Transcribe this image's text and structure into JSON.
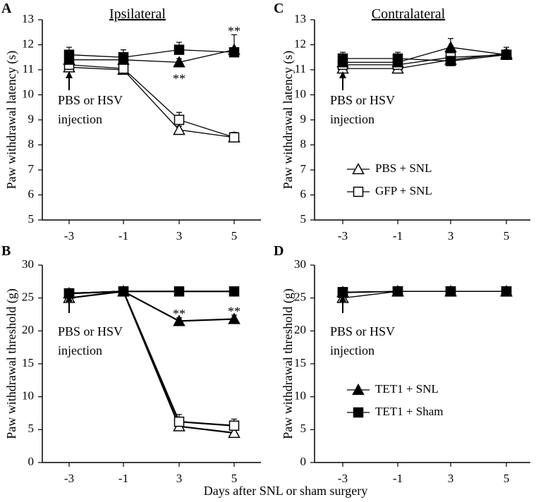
{
  "figure": {
    "xlabel": "Days after SNL or sham surgery"
  },
  "legend": {
    "symbol_colors": {
      "open": "#ffffff",
      "filled": "#000000",
      "line": "#000000"
    }
  },
  "chart_data": [
    {
      "panel": "A",
      "type": "line",
      "title": "Ipsilateral",
      "ylabel": "Paw withdrawal latency (s)",
      "xlabel": "Days after SNL or sham surgery",
      "categories": [
        "-3",
        "-1",
        "3",
        "5"
      ],
      "ylim": [
        5,
        13
      ],
      "yticks": [
        5,
        6,
        7,
        8,
        9,
        10,
        11,
        12,
        13
      ],
      "annotation": [
        "PBS or HSV",
        "injection"
      ],
      "series": [
        {
          "name": "PBS + SNL",
          "marker": "open-triangle",
          "values": [
            11.1,
            11.0,
            8.6,
            8.3
          ],
          "errors": [
            0.1,
            0.1,
            0.15,
            0.15
          ]
        },
        {
          "name": "GFP + SNL",
          "marker": "open-square",
          "values": [
            11.2,
            11.05,
            9.0,
            8.3
          ],
          "errors": [
            0.1,
            0.1,
            0.3,
            0.2
          ]
        },
        {
          "name": "TET1 + SNL",
          "marker": "filled-triangle",
          "values": [
            11.4,
            11.4,
            11.3,
            11.8
          ],
          "errors": [
            0.15,
            0.15,
            0.15,
            0.6
          ]
        },
        {
          "name": "TET1 + Sham",
          "marker": "filled-square",
          "values": [
            11.6,
            11.5,
            11.8,
            11.7
          ],
          "errors": [
            0.3,
            0.3,
            0.3,
            0.15
          ]
        }
      ],
      "significance": [
        {
          "category": "3",
          "text": "**",
          "value": 10.7
        },
        {
          "category": "5",
          "text": "**",
          "value": 12.6
        }
      ]
    },
    {
      "panel": "C",
      "type": "line",
      "title": "Contralateral",
      "ylabel": "Paw withdrawal latency (s)",
      "xlabel": "Days after SNL or sham surgery",
      "categories": [
        "-3",
        "-1",
        "3",
        "5"
      ],
      "ylim": [
        5,
        13
      ],
      "yticks": [
        5,
        6,
        7,
        8,
        9,
        10,
        11,
        12,
        13
      ],
      "annotation": [
        "PBS or HSV",
        "injection"
      ],
      "series": [
        {
          "name": "PBS + SNL",
          "marker": "open-triangle",
          "values": [
            11.05,
            11.05,
            11.4,
            11.65
          ],
          "errors": [
            0.1,
            0.1,
            0.1,
            0.15
          ]
        },
        {
          "name": "GFP + SNL",
          "marker": "open-square",
          "values": [
            11.2,
            11.2,
            11.5,
            11.6
          ],
          "errors": [
            0.15,
            0.15,
            0.2,
            0.2
          ]
        },
        {
          "name": "TET1 + SNL",
          "marker": "filled-triangle",
          "values": [
            11.3,
            11.3,
            11.9,
            11.6
          ],
          "errors": [
            0.15,
            0.15,
            0.35,
            0.15
          ]
        },
        {
          "name": "TET1 + Sham",
          "marker": "filled-square",
          "values": [
            11.45,
            11.45,
            11.35,
            11.6
          ],
          "errors": [
            0.25,
            0.25,
            0.1,
            0.3
          ]
        }
      ],
      "legend_entries": [
        "PBS + SNL",
        "GFP + SNL"
      ]
    },
    {
      "panel": "B",
      "type": "line",
      "title": "",
      "ylabel": "Paw withdrawal threshold (g)",
      "xlabel": "Days after SNL or sham surgery",
      "categories": [
        "-3",
        "-1",
        "3",
        "5"
      ],
      "ylim": [
        0,
        30
      ],
      "yticks": [
        0,
        5,
        10,
        15,
        20,
        25,
        30
      ],
      "annotation": [
        "PBS or HSV",
        "injection"
      ],
      "series": [
        {
          "name": "PBS + SNL",
          "marker": "open-triangle",
          "values": [
            25.0,
            26.0,
            5.5,
            4.5
          ],
          "errors": [
            0.3,
            0.3,
            0.5,
            0.8
          ]
        },
        {
          "name": "GFP + SNL",
          "marker": "open-square",
          "values": [
            25.7,
            26.0,
            6.2,
            5.6
          ],
          "errors": [
            0.3,
            0.3,
            1.1,
            1.0
          ]
        },
        {
          "name": "TET1 + SNL",
          "marker": "filled-triangle",
          "values": [
            25.7,
            26.0,
            21.5,
            21.8
          ],
          "errors": [
            0.3,
            0.3,
            0.5,
            0.6
          ]
        },
        {
          "name": "TET1 + Sham",
          "marker": "filled-square",
          "values": [
            25.7,
            26.0,
            26.0,
            26.0
          ],
          "errors": [
            0.3,
            0.3,
            0.3,
            0.3
          ]
        }
      ],
      "significance": [
        {
          "category": "3",
          "text": "**",
          "value": 22.8
        },
        {
          "category": "5",
          "text": "**",
          "value": 23.2
        }
      ]
    },
    {
      "panel": "D",
      "type": "line",
      "title": "",
      "ylabel": "Paw withdrawal threshold (g)",
      "xlabel": "Days after SNL or sham surgery",
      "categories": [
        "-3",
        "-1",
        "3",
        "5"
      ],
      "ylim": [
        0,
        30
      ],
      "yticks": [
        0,
        5,
        10,
        15,
        20,
        25,
        30
      ],
      "annotation": [
        "PBS or HSV",
        "injection"
      ],
      "series": [
        {
          "name": "PBS + SNL",
          "marker": "open-triangle",
          "values": [
            25.0,
            26.0,
            26.0,
            26.0
          ],
          "errors": [
            0.3,
            0.3,
            0.3,
            0.3
          ]
        },
        {
          "name": "GFP + SNL",
          "marker": "open-square",
          "values": [
            25.8,
            26.0,
            26.0,
            26.0
          ],
          "errors": [
            0.3,
            0.3,
            0.3,
            0.3
          ]
        },
        {
          "name": "TET1 + SNL",
          "marker": "filled-triangle",
          "values": [
            25.9,
            26.0,
            26.0,
            26.0
          ],
          "errors": [
            0.3,
            0.3,
            0.3,
            0.3
          ]
        },
        {
          "name": "TET1 + Sham",
          "marker": "filled-square",
          "values": [
            25.9,
            26.0,
            26.0,
            26.0
          ],
          "errors": [
            0.3,
            0.3,
            0.3,
            0.3
          ]
        }
      ],
      "legend_entries": [
        "TET1 + SNL",
        "TET1 + Sham"
      ]
    }
  ]
}
